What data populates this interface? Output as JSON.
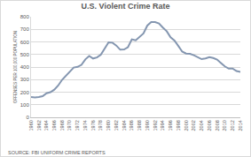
{
  "chart_data": {
    "type": "line",
    "title": "U.S. Violent Crime Rate",
    "y_label": "OFFENSES PER 100,000 POPULATION",
    "annotations": [
      "SOURCE: FBI UNIFORM CRIME REPORTS"
    ],
    "x": [
      1960,
      1961,
      1962,
      1963,
      1964,
      1965,
      1966,
      1967,
      1968,
      1969,
      1970,
      1971,
      1972,
      1973,
      1974,
      1975,
      1976,
      1977,
      1978,
      1979,
      1980,
      1981,
      1982,
      1983,
      1984,
      1985,
      1986,
      1987,
      1988,
      1989,
      1990,
      1991,
      1992,
      1993,
      1994,
      1995,
      1996,
      1997,
      1998,
      1999,
      2000,
      2001,
      2002,
      2003,
      2004,
      2005,
      2006,
      2007,
      2008,
      2009,
      2010,
      2011,
      2012,
      2013,
      2014
    ],
    "values": [
      161,
      158,
      162,
      168,
      191,
      200,
      220,
      253,
      298,
      329,
      364,
      396,
      401,
      417,
      461,
      488,
      468,
      476,
      498,
      549,
      597,
      594,
      571,
      538,
      540,
      558,
      620,
      613,
      641,
      667,
      730,
      758,
      758,
      747,
      714,
      685,
      637,
      611,
      568,
      523,
      507,
      505,
      494,
      476,
      463,
      469,
      479,
      472,
      459,
      432,
      405,
      387,
      388,
      368,
      362
    ],
    "color": "#8496b0",
    "xlim": [
      1960,
      2014
    ],
    "xticks": [
      1960,
      1962,
      1964,
      1966,
      1968,
      1970,
      1972,
      1974,
      1976,
      1978,
      1980,
      1982,
      1984,
      1986,
      1988,
      1990,
      1992,
      1994,
      1996,
      1998,
      2000,
      2002,
      2004,
      2006,
      2008,
      2010,
      2012,
      2014
    ],
    "ylim": [
      0,
      800
    ],
    "yticks": [
      0,
      100,
      200,
      300,
      400,
      500,
      600,
      700,
      800
    ],
    "grid": true
  }
}
